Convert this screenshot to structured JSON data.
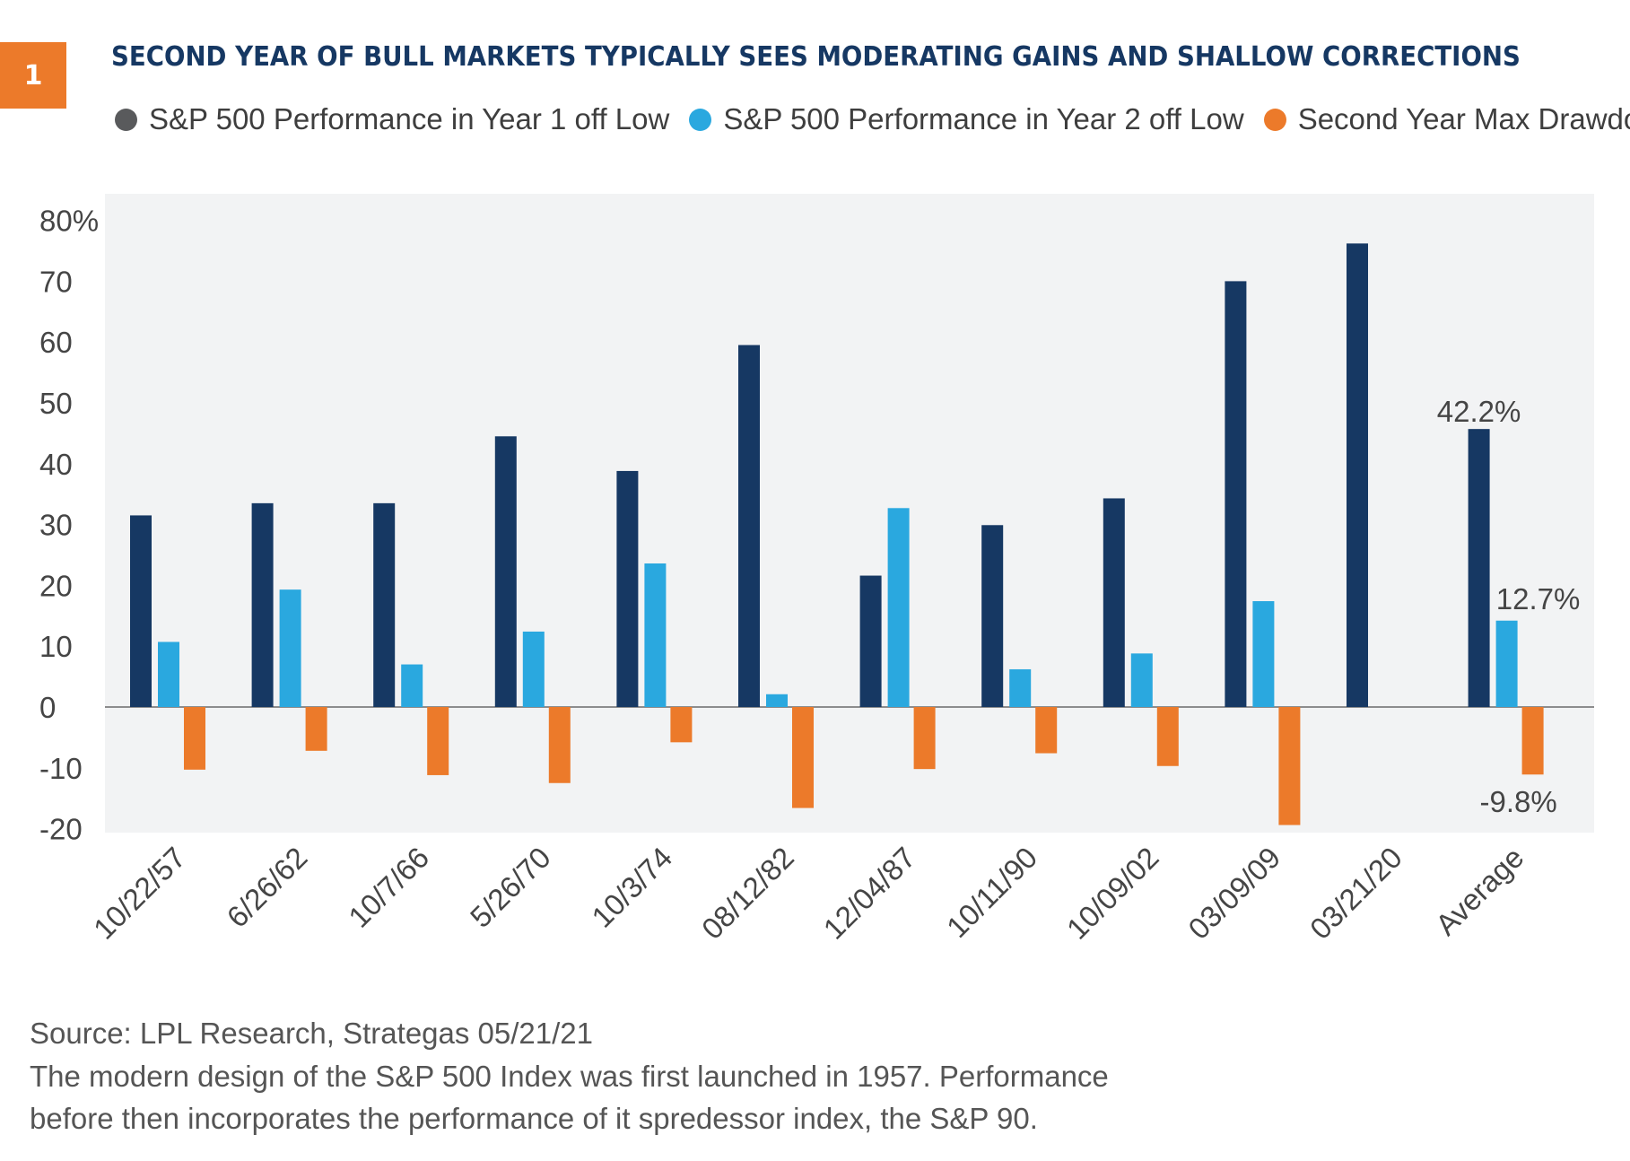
{
  "badge": "1",
  "title": "SECOND YEAR OF BULL MARKETS TYPICALLY SEES MODERATING GAINS AND SHALLOW CORRECTIONS",
  "legend": [
    {
      "label": "S&P 500 Performance in Year 1 off Low",
      "color": "#595a5c"
    },
    {
      "label": "S&P 500 Performance in Year 2 off Low",
      "color": "#2aa8df"
    },
    {
      "label": "Second Year Max Drawdown",
      "color": "#ec7a2a"
    }
  ],
  "chart_data": {
    "type": "bar",
    "categories": [
      "10/22/57",
      "6/26/62",
      "10/7/66",
      "5/26/70",
      "10/3/74",
      "08/12/82",
      "12/04/87",
      "10/11/90",
      "10/09/02",
      "03/09/09",
      "03/21/20",
      "Average"
    ],
    "series": [
      {
        "name": "S&P 500 Performance in Year 1 off Low",
        "color": "#163863",
        "values": [
          31.5,
          33.5,
          33.5,
          44.5,
          38.8,
          59.5,
          21.6,
          29.9,
          34.3,
          70.0,
          76.2,
          45.7
        ]
      },
      {
        "name": "S&P 500 Performance in Year 2 off Low",
        "color": "#2aa8df",
        "values": [
          10.7,
          19.3,
          7.0,
          12.4,
          23.6,
          2.1,
          32.7,
          6.2,
          8.8,
          17.4,
          null,
          14.2
        ]
      },
      {
        "name": "Second Year Max Drawdown",
        "color": "#ec7a2a",
        "values": [
          -10.3,
          -7.2,
          -11.2,
          -12.5,
          -5.8,
          -16.6,
          -10.2,
          -7.6,
          -9.7,
          -19.4,
          null,
          -11.1
        ]
      }
    ],
    "yticks": [
      "80%",
      "70",
      "60",
      "50",
      "40",
      "30",
      "20",
      "10",
      "0",
      "-10",
      "-20"
    ],
    "ylim": [
      -20.5,
      83
    ],
    "grid": false,
    "legend_position": "top",
    "annotations": [
      {
        "text": "42.2%"
      },
      {
        "text": "12.7%"
      },
      {
        "text": "-9.8%"
      }
    ],
    "plot_background": "#f2f3f4"
  },
  "footer": {
    "source": "Source: LPL Research, Strategas 05/21/21",
    "note_line1": "The modern design of the S&P 500 Index was first launched in 1957. Performance",
    "note_line2": "before then incorporates the performance of it spredessor index, the S&P 90."
  }
}
